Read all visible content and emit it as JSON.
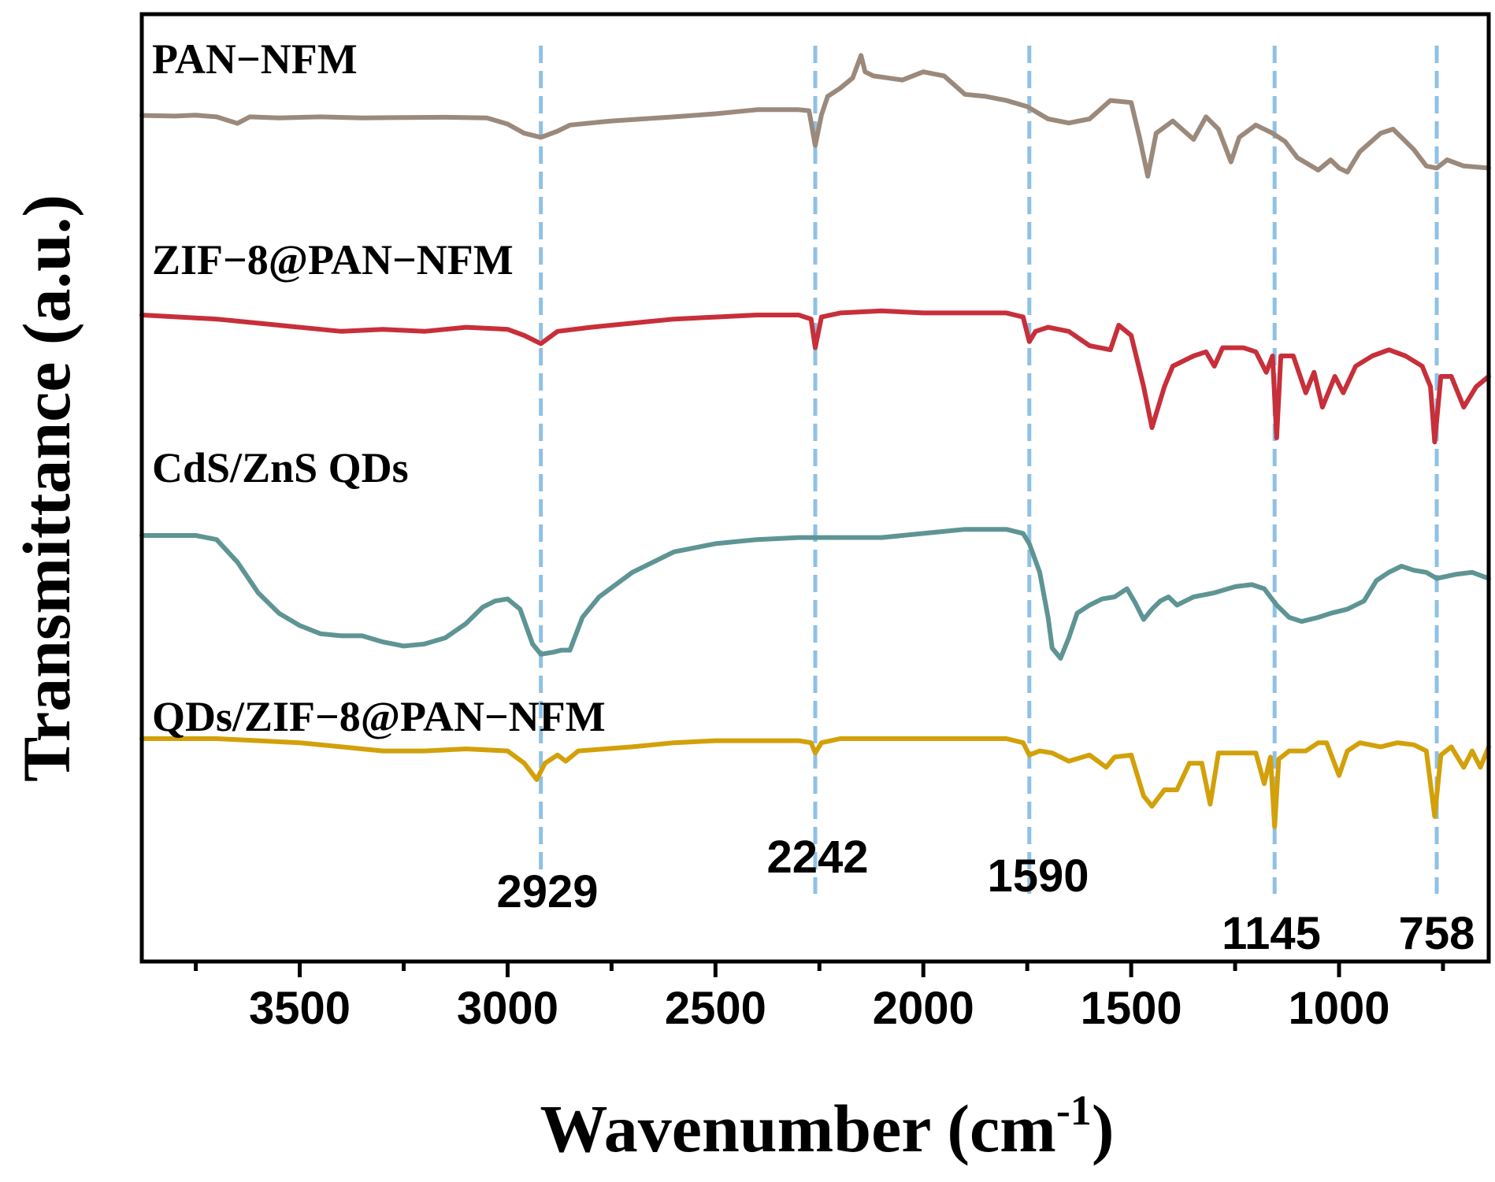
{
  "chart_data": {
    "type": "line",
    "xlabel": "Wavenumber (cm",
    "xlabel_superscript": "-1",
    "xlabel_suffix": ")",
    "ylabel": "Transmittance (a.u.)",
    "xlim": [
      3880,
      640
    ],
    "x_reversed": true,
    "grid": false,
    "x_ticks": [
      3500,
      3000,
      2500,
      2000,
      1500,
      1000
    ],
    "x_minor_ticks": [
      3750,
      3250,
      2750,
      2250,
      1750,
      1250,
      750
    ],
    "markers": [
      {
        "x": 2920,
        "label": "2929"
      },
      {
        "x": 2260,
        "label": "2242"
      },
      {
        "x": 1745,
        "label": "1590"
      },
      {
        "x": 1155,
        "label": "1145"
      },
      {
        "x": 765,
        "label": "758"
      }
    ],
    "series": [
      {
        "name": "PAN−NFM",
        "color": "#9b8a7c",
        "points": [
          [
            3880,
            0.33
          ],
          [
            3800,
            0.36
          ],
          [
            3750,
            0.32
          ],
          [
            3700,
            0.4
          ],
          [
            3650,
            0.72
          ],
          [
            3620,
            0.4
          ],
          [
            3550,
            0.45
          ],
          [
            3450,
            0.4
          ],
          [
            3350,
            0.45
          ],
          [
            3250,
            0.43
          ],
          [
            3150,
            0.42
          ],
          [
            3050,
            0.45
          ],
          [
            3000,
            0.75
          ],
          [
            2960,
            1.2
          ],
          [
            2920,
            1.4
          ],
          [
            2880,
            1.1
          ],
          [
            2850,
            0.8
          ],
          [
            2750,
            0.6
          ],
          [
            2600,
            0.4
          ],
          [
            2500,
            0.25
          ],
          [
            2400,
            0.05
          ],
          [
            2300,
            0.05
          ],
          [
            2275,
            0.1
          ],
          [
            2260,
            1.8
          ],
          [
            2245,
            0.3
          ],
          [
            2230,
            -0.6
          ],
          [
            2200,
            -1.0
          ],
          [
            2170,
            -1.5
          ],
          [
            2150,
            -2.6
          ],
          [
            2140,
            -1.8
          ],
          [
            2120,
            -1.6
          ],
          [
            2050,
            -1.4
          ],
          [
            2000,
            -1.8
          ],
          [
            1950,
            -1.6
          ],
          [
            1900,
            -0.7
          ],
          [
            1850,
            -0.6
          ],
          [
            1800,
            -0.4
          ],
          [
            1750,
            -0.1
          ],
          [
            1700,
            0.5
          ],
          [
            1650,
            0.7
          ],
          [
            1600,
            0.5
          ],
          [
            1550,
            -0.4
          ],
          [
            1500,
            -0.3
          ],
          [
            1480,
            1.4
          ],
          [
            1460,
            3.3
          ],
          [
            1440,
            1.2
          ],
          [
            1400,
            0.6
          ],
          [
            1350,
            1.5
          ],
          [
            1320,
            0.4
          ],
          [
            1290,
            1.0
          ],
          [
            1260,
            2.6
          ],
          [
            1240,
            1.4
          ],
          [
            1200,
            0.8
          ],
          [
            1160,
            1.2
          ],
          [
            1130,
            1.6
          ],
          [
            1100,
            2.4
          ],
          [
            1050,
            3.0
          ],
          [
            1020,
            2.5
          ],
          [
            1000,
            2.9
          ],
          [
            980,
            3.1
          ],
          [
            950,
            2.1
          ],
          [
            900,
            1.2
          ],
          [
            870,
            1.0
          ],
          [
            850,
            1.4
          ],
          [
            820,
            2.0
          ],
          [
            790,
            2.8
          ],
          [
            765,
            2.9
          ],
          [
            740,
            2.5
          ],
          [
            700,
            2.8
          ],
          [
            640,
            2.9
          ]
        ]
      },
      {
        "name": "ZIF−8@PAN−NFM",
        "color": "#c72f3a",
        "points": [
          [
            3880,
            7.0
          ],
          [
            3700,
            7.2
          ],
          [
            3600,
            7.4
          ],
          [
            3500,
            7.6
          ],
          [
            3400,
            7.8
          ],
          [
            3300,
            7.7
          ],
          [
            3200,
            7.8
          ],
          [
            3100,
            7.6
          ],
          [
            3000,
            7.7
          ],
          [
            2960,
            8.0
          ],
          [
            2920,
            8.4
          ],
          [
            2880,
            7.8
          ],
          [
            2800,
            7.6
          ],
          [
            2700,
            7.4
          ],
          [
            2600,
            7.2
          ],
          [
            2500,
            7.1
          ],
          [
            2400,
            7.0
          ],
          [
            2300,
            7.0
          ],
          [
            2270,
            7.2
          ],
          [
            2260,
            8.6
          ],
          [
            2245,
            7.1
          ],
          [
            2200,
            6.9
          ],
          [
            2100,
            6.8
          ],
          [
            2000,
            6.9
          ],
          [
            1900,
            6.9
          ],
          [
            1800,
            6.9
          ],
          [
            1760,
            7.1
          ],
          [
            1745,
            8.3
          ],
          [
            1730,
            7.8
          ],
          [
            1700,
            7.6
          ],
          [
            1650,
            7.8
          ],
          [
            1600,
            8.5
          ],
          [
            1550,
            8.7
          ],
          [
            1530,
            7.5
          ],
          [
            1500,
            8.0
          ],
          [
            1470,
            10.5
          ],
          [
            1450,
            12.5
          ],
          [
            1420,
            10.5
          ],
          [
            1400,
            9.5
          ],
          [
            1350,
            9.0
          ],
          [
            1320,
            8.8
          ],
          [
            1300,
            9.5
          ],
          [
            1280,
            8.6
          ],
          [
            1230,
            8.6
          ],
          [
            1200,
            8.8
          ],
          [
            1175,
            9.8
          ],
          [
            1160,
            9.0
          ],
          [
            1150,
            13.0
          ],
          [
            1140,
            9.0
          ],
          [
            1110,
            9.0
          ],
          [
            1080,
            10.8
          ],
          [
            1060,
            9.8
          ],
          [
            1040,
            11.5
          ],
          [
            1010,
            10.0
          ],
          [
            990,
            10.8
          ],
          [
            960,
            9.5
          ],
          [
            920,
            9.0
          ],
          [
            880,
            8.7
          ],
          [
            840,
            9.0
          ],
          [
            800,
            9.5
          ],
          [
            780,
            10.5
          ],
          [
            770,
            13.2
          ],
          [
            755,
            10.0
          ],
          [
            730,
            10.0
          ],
          [
            700,
            11.5
          ],
          [
            670,
            10.5
          ],
          [
            640,
            10.0
          ]
        ]
      },
      {
        "name": "CdS/ZnS QDs",
        "color": "#5e9594",
        "points": [
          [
            3880,
            15.0
          ],
          [
            3750,
            15.0
          ],
          [
            3700,
            15.2
          ],
          [
            3650,
            16.3
          ],
          [
            3600,
            17.8
          ],
          [
            3550,
            18.8
          ],
          [
            3500,
            19.4
          ],
          [
            3450,
            19.8
          ],
          [
            3400,
            19.9
          ],
          [
            3350,
            19.9
          ],
          [
            3300,
            20.2
          ],
          [
            3250,
            20.4
          ],
          [
            3200,
            20.3
          ],
          [
            3150,
            20.0
          ],
          [
            3100,
            19.3
          ],
          [
            3060,
            18.5
          ],
          [
            3030,
            18.2
          ],
          [
            3000,
            18.1
          ],
          [
            2970,
            18.6
          ],
          [
            2940,
            20.3
          ],
          [
            2920,
            20.8
          ],
          [
            2890,
            20.7
          ],
          [
            2870,
            20.6
          ],
          [
            2850,
            20.6
          ],
          [
            2820,
            19.0
          ],
          [
            2780,
            18.0
          ],
          [
            2700,
            16.8
          ],
          [
            2600,
            15.8
          ],
          [
            2500,
            15.4
          ],
          [
            2400,
            15.2
          ],
          [
            2300,
            15.1
          ],
          [
            2200,
            15.1
          ],
          [
            2100,
            15.1
          ],
          [
            2000,
            14.9
          ],
          [
            1900,
            14.7
          ],
          [
            1800,
            14.7
          ],
          [
            1760,
            14.9
          ],
          [
            1745,
            15.4
          ],
          [
            1720,
            16.8
          ],
          [
            1700,
            19.0
          ],
          [
            1690,
            20.5
          ],
          [
            1670,
            21.0
          ],
          [
            1650,
            20.0
          ],
          [
            1630,
            18.8
          ],
          [
            1600,
            18.4
          ],
          [
            1570,
            18.1
          ],
          [
            1540,
            18.0
          ],
          [
            1510,
            17.6
          ],
          [
            1490,
            18.3
          ],
          [
            1470,
            19.1
          ],
          [
            1450,
            18.6
          ],
          [
            1430,
            18.2
          ],
          [
            1410,
            18.0
          ],
          [
            1390,
            18.4
          ],
          [
            1350,
            18.0
          ],
          [
            1300,
            17.8
          ],
          [
            1250,
            17.5
          ],
          [
            1210,
            17.4
          ],
          [
            1180,
            17.6
          ],
          [
            1150,
            18.4
          ],
          [
            1120,
            19.0
          ],
          [
            1090,
            19.2
          ],
          [
            1050,
            19.0
          ],
          [
            1020,
            18.8
          ],
          [
            980,
            18.6
          ],
          [
            940,
            18.2
          ],
          [
            910,
            17.2
          ],
          [
            880,
            16.8
          ],
          [
            850,
            16.5
          ],
          [
            820,
            16.7
          ],
          [
            790,
            16.8
          ],
          [
            765,
            17.1
          ],
          [
            720,
            16.9
          ],
          [
            680,
            16.8
          ],
          [
            640,
            17.1
          ]
        ]
      },
      {
        "name": "QDs/ZIF−8@PAN−NFM",
        "color": "#d2a10a",
        "points": [
          [
            3880,
            22.0
          ],
          [
            3700,
            22.0
          ],
          [
            3500,
            22.2
          ],
          [
            3400,
            22.4
          ],
          [
            3300,
            22.6
          ],
          [
            3200,
            22.6
          ],
          [
            3100,
            22.5
          ],
          [
            3000,
            22.6
          ],
          [
            2960,
            23.2
          ],
          [
            2930,
            24.0
          ],
          [
            2910,
            23.2
          ],
          [
            2880,
            22.8
          ],
          [
            2860,
            23.1
          ],
          [
            2830,
            22.6
          ],
          [
            2700,
            22.4
          ],
          [
            2600,
            22.2
          ],
          [
            2500,
            22.1
          ],
          [
            2400,
            22.1
          ],
          [
            2300,
            22.1
          ],
          [
            2270,
            22.2
          ],
          [
            2260,
            22.7
          ],
          [
            2245,
            22.2
          ],
          [
            2200,
            22.0
          ],
          [
            2100,
            22.0
          ],
          [
            2000,
            22.0
          ],
          [
            1900,
            22.0
          ],
          [
            1800,
            22.0
          ],
          [
            1760,
            22.2
          ],
          [
            1745,
            22.8
          ],
          [
            1720,
            22.6
          ],
          [
            1690,
            22.7
          ],
          [
            1650,
            23.1
          ],
          [
            1600,
            22.8
          ],
          [
            1560,
            23.4
          ],
          [
            1540,
            22.9
          ],
          [
            1500,
            22.8
          ],
          [
            1470,
            24.8
          ],
          [
            1450,
            25.3
          ],
          [
            1420,
            24.5
          ],
          [
            1390,
            24.5
          ],
          [
            1360,
            23.2
          ],
          [
            1330,
            23.2
          ],
          [
            1310,
            25.2
          ],
          [
            1290,
            22.7
          ],
          [
            1240,
            22.7
          ],
          [
            1200,
            22.7
          ],
          [
            1180,
            24.2
          ],
          [
            1165,
            22.9
          ],
          [
            1155,
            26.3
          ],
          [
            1145,
            23.0
          ],
          [
            1120,
            22.6
          ],
          [
            1080,
            22.6
          ],
          [
            1050,
            22.2
          ],
          [
            1030,
            22.2
          ],
          [
            1000,
            23.8
          ],
          [
            980,
            22.6
          ],
          [
            950,
            22.2
          ],
          [
            900,
            22.4
          ],
          [
            860,
            22.2
          ],
          [
            820,
            22.3
          ],
          [
            790,
            22.6
          ],
          [
            770,
            25.8
          ],
          [
            755,
            22.8
          ],
          [
            730,
            22.4
          ],
          [
            700,
            23.4
          ],
          [
            680,
            22.6
          ],
          [
            660,
            23.4
          ],
          [
            640,
            22.4
          ]
        ]
      }
    ]
  }
}
